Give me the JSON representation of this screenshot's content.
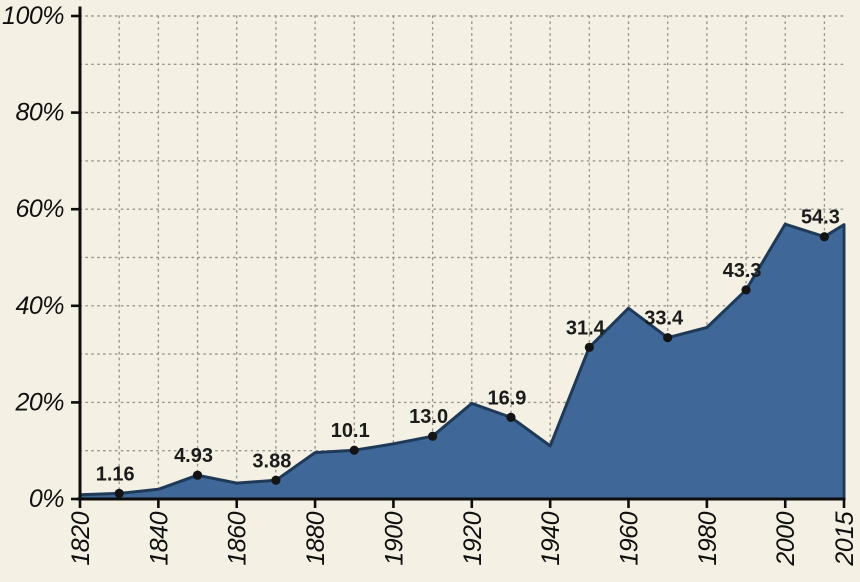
{
  "chart_data": {
    "type": "area",
    "title": "",
    "xlabel": "",
    "ylabel": "",
    "x": [
      1820,
      1830,
      1840,
      1850,
      1860,
      1870,
      1880,
      1890,
      1900,
      1910,
      1920,
      1930,
      1940,
      1950,
      1960,
      1970,
      1980,
      1990,
      2000,
      2010,
      2015
    ],
    "values": [
      0.9,
      1.16,
      2.0,
      4.93,
      3.3,
      3.88,
      9.6,
      10.1,
      11.4,
      13.0,
      19.8,
      16.9,
      11.0,
      31.4,
      39.5,
      33.4,
      35.5,
      43.3,
      56.9,
      54.3,
      56.8
    ],
    "labeled_points": [
      {
        "x": 1830,
        "value": 1.16,
        "label": "1.16"
      },
      {
        "x": 1850,
        "value": 4.93,
        "label": "4.93"
      },
      {
        "x": 1870,
        "value": 3.88,
        "label": "3.88"
      },
      {
        "x": 1890,
        "value": 10.1,
        "label": "10.1"
      },
      {
        "x": 1910,
        "value": 13.0,
        "label": "13.0"
      },
      {
        "x": 1930,
        "value": 16.9,
        "label": "16.9"
      },
      {
        "x": 1950,
        "value": 31.4,
        "label": "31.4"
      },
      {
        "x": 1970,
        "value": 33.4,
        "label": "33.4"
      },
      {
        "x": 1990,
        "value": 43.3,
        "label": "43.3"
      },
      {
        "x": 2010,
        "value": 54.3,
        "label": "54.3"
      }
    ],
    "y_ticks": [
      "0%",
      "20%",
      "40%",
      "60%",
      "80%",
      "100%"
    ],
    "y_tick_values": [
      0,
      20,
      40,
      60,
      80,
      100
    ],
    "x_tick_labels": [
      "1820",
      "1840",
      "1860",
      "1880",
      "1900",
      "1920",
      "1940",
      "1960",
      "1980",
      "2000",
      "2015"
    ],
    "x_tick_values": [
      1820,
      1840,
      1860,
      1880,
      1900,
      1920,
      1940,
      1960,
      1980,
      2000,
      2015
    ],
    "xlim": [
      1820,
      2015
    ],
    "ylim": [
      0,
      100
    ],
    "grid": "dotted",
    "x_grid_interval": 10,
    "y_grid_interval": 10,
    "legend": "none",
    "colors": {
      "background": "#f4f1e4",
      "area_fill": "#3f6898",
      "area_line": "#1f3a58",
      "grid": "#8d8c84",
      "axis": "#0d0d0d",
      "dot": "#141414",
      "point_label": "#1b1b1b",
      "tick_label": "#101010"
    }
  }
}
